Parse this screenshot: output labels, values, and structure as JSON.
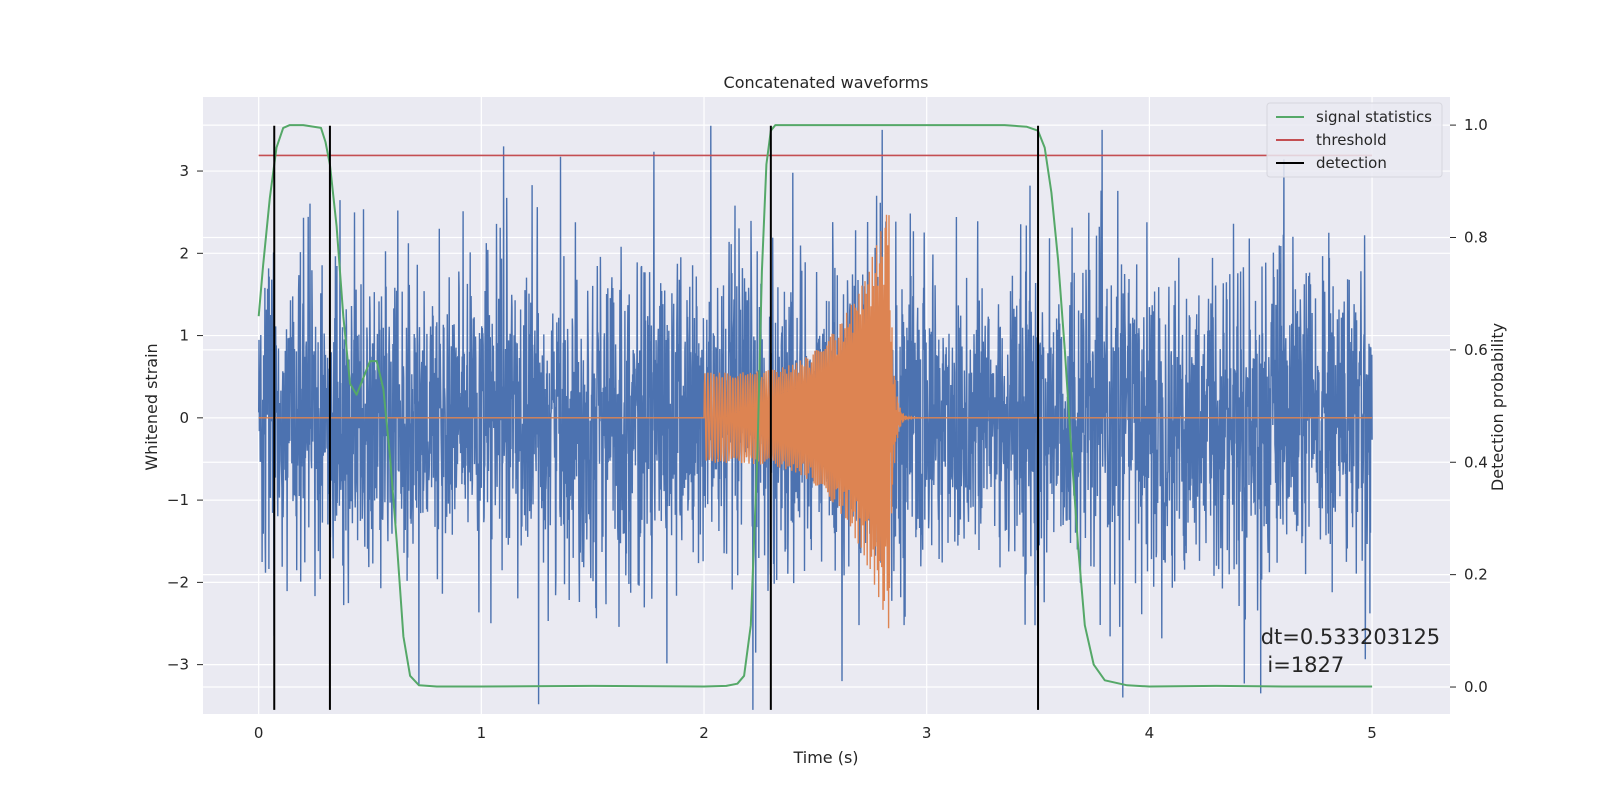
{
  "chart_data": {
    "type": "line",
    "title": "Concatenated waveforms",
    "xlabel": "Time (s)",
    "ylabel": "Whitened strain",
    "y2label": "Detection probability",
    "xlim": [
      -0.25,
      5.35
    ],
    "ylim": [
      -3.6,
      3.9
    ],
    "y2lim": [
      -0.048,
      1.05
    ],
    "x_ticks": [
      0,
      1,
      2,
      3,
      4,
      5
    ],
    "y_ticks": [
      -3,
      -2,
      -1,
      0,
      1,
      2,
      3
    ],
    "y2_ticks": [
      0.0,
      0.2,
      0.4,
      0.6,
      0.8,
      1.0
    ],
    "x_tick_labels": [
      "0",
      "1",
      "2",
      "3",
      "4",
      "5"
    ],
    "y_tick_labels": [
      "−3",
      "−2",
      "−1",
      "0",
      "1",
      "2",
      "3"
    ],
    "y2_tick_labels": [
      "0.0",
      "0.2",
      "0.4",
      "0.6",
      "0.8",
      "1.0"
    ],
    "grid": true,
    "legend_position": "top-right",
    "colors": {
      "background": "#eaeaf2",
      "grid": "#ffffff",
      "noise": "#4c72b0",
      "injection": "#dd8452",
      "signal_statistics": "#55a868",
      "threshold": "#c44e52",
      "detection": "#000000"
    },
    "series": [
      {
        "name": "noise",
        "kind": "random-strain",
        "x_range": [
          0,
          5
        ],
        "amplitude_envelope": 3.5,
        "spike_markers": [
          {
            "x": 1.1,
            "y": 3.3
          },
          {
            "x": 2.03,
            "y": 3.55
          },
          {
            "x": 2.8,
            "y": 3.5
          },
          {
            "x": 4.5,
            "y": -3.35
          },
          {
            "x": 2.22,
            "y": -3.55
          },
          {
            "x": 0.07,
            "y": -2.65
          },
          {
            "x": 0.72,
            "y": -3.25
          },
          {
            "x": 2.62,
            "y": -3.2
          },
          {
            "x": 3.88,
            "y": -3.4
          }
        ]
      },
      {
        "name": "injection",
        "kind": "chirp",
        "x_start": 2.0,
        "x_merger": 2.83,
        "x_ringdown_end": 3.0,
        "amplitude_start": 0.55,
        "amplitude_peak": 2.6
      },
      {
        "name": "signal statistics",
        "axis": "right",
        "x": [
          0.0,
          0.02,
          0.05,
          0.08,
          0.11,
          0.14,
          0.2,
          0.28,
          0.3,
          0.32,
          0.35,
          0.38,
          0.41,
          0.44,
          0.47,
          0.5,
          0.53,
          0.56,
          0.59,
          0.62,
          0.65,
          0.68,
          0.72,
          0.8,
          1.0,
          1.5,
          2.0,
          2.1,
          2.15,
          2.18,
          2.21,
          2.24,
          2.26,
          2.28,
          2.3,
          2.32,
          2.36,
          2.5,
          3.0,
          3.35,
          3.45,
          3.5,
          3.53,
          3.56,
          3.59,
          3.62,
          3.65,
          3.68,
          3.71,
          3.75,
          3.8,
          3.9,
          4.0,
          4.3,
          4.6,
          5.0
        ],
        "values": [
          0.66,
          0.75,
          0.87,
          0.96,
          0.995,
          1.0,
          1.0,
          0.995,
          0.97,
          0.93,
          0.82,
          0.66,
          0.54,
          0.52,
          0.55,
          0.58,
          0.58,
          0.53,
          0.41,
          0.26,
          0.09,
          0.02,
          0.003,
          0.001,
          0.001,
          0.002,
          0.001,
          0.002,
          0.006,
          0.02,
          0.11,
          0.42,
          0.74,
          0.93,
          0.99,
          1.0,
          1.0,
          1.0,
          1.0,
          1.0,
          0.997,
          0.99,
          0.96,
          0.88,
          0.76,
          0.6,
          0.42,
          0.25,
          0.11,
          0.04,
          0.012,
          0.003,
          0.001,
          0.002,
          0.001,
          0.001
        ]
      },
      {
        "name": "threshold",
        "axis": "left",
        "x": [
          0,
          5
        ],
        "values": [
          3.19,
          3.19
        ]
      },
      {
        "name": "detection",
        "kind": "vertical-lines",
        "x": [
          0.07,
          0.32,
          2.3,
          3.5
        ],
        "y_range": [
          -3.55,
          3.55
        ]
      }
    ],
    "legend": [
      "signal statistics",
      "threshold",
      "detection"
    ],
    "annotation": {
      "line1": "dt=0.533203125",
      "line2": " i=1827",
      "x": 4.5,
      "y": -2.75
    }
  }
}
